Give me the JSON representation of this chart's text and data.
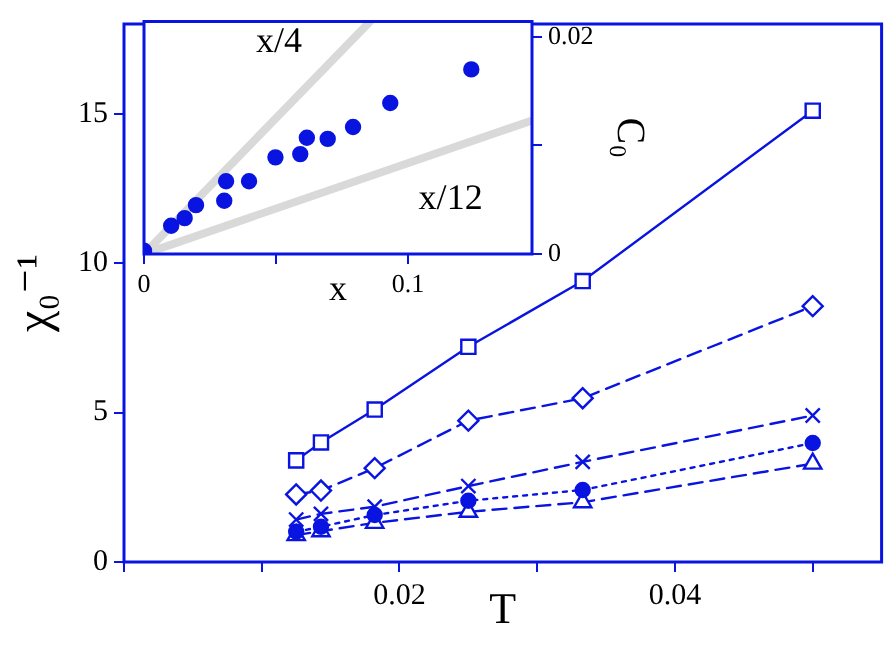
{
  "chart_data": [
    {
      "type": "line",
      "xlabel": "T",
      "ylabel": "χ₀⁻¹",
      "xlim": [
        0,
        0.055
      ],
      "ylim": [
        0,
        18
      ],
      "xticks": [
        {
          "value": 0,
          "label": null
        },
        {
          "value": 0.01,
          "label": null
        },
        0.02,
        {
          "value": 0.03,
          "label": null
        },
        0.04,
        {
          "value": 0.05,
          "label": null
        }
      ],
      "yticks": [
        0,
        5,
        10,
        15
      ],
      "grid": false,
      "legend": false,
      "x": [
        0.0125,
        0.0143,
        0.0182,
        0.025,
        0.0333,
        0.05
      ],
      "series": [
        {
          "color": "#0a14e0",
          "marker": "square",
          "line_style": "solid",
          "values": [
            3.4,
            4.0,
            5.1,
            7.2,
            9.4,
            15.1
          ]
        },
        {
          "color": "#0a14e0",
          "marker": "diamond",
          "line_style": "dashed",
          "values": [
            2.26,
            2.39,
            3.14,
            4.73,
            5.48,
            8.56
          ]
        },
        {
          "color": "#0a14e0",
          "marker": "cross",
          "line_style": "dashed",
          "values": [
            1.42,
            1.61,
            1.85,
            2.54,
            3.35,
            4.9
          ]
        },
        {
          "color": "#0a14e0",
          "marker": "circle",
          "line_style": "dotted",
          "values": [
            1.01,
            1.18,
            1.57,
            2.05,
            2.41,
            3.98
          ]
        },
        {
          "color": "#0a14e0",
          "marker": "triangle",
          "line_style": "dashed",
          "values": [
            0.9,
            1.03,
            1.31,
            1.68,
            2.0,
            3.29
          ]
        }
      ]
    },
    {
      "type": "scatter",
      "xlabel": "x",
      "ylabel": "C₀",
      "xlim": [
        0,
        0.147
      ],
      "ylim": [
        0,
        0.0214
      ],
      "xticks": [
        0,
        {
          "value": 0.05,
          "label": null
        },
        0.1
      ],
      "yticks": [
        0,
        {
          "value": 0.01,
          "label": null
        },
        0.02
      ],
      "grid": false,
      "legend": false,
      "series": [
        {
          "type": "line",
          "name": "x/4",
          "color": "#d9d9d9",
          "marker": "none",
          "line_style": "solid",
          "x": [
            0,
            0.0856
          ],
          "values": [
            0,
            0.0214
          ]
        },
        {
          "type": "line",
          "name": "x/12",
          "color": "#d9d9d9",
          "marker": "none",
          "line_style": "solid",
          "x": [
            0,
            0.147
          ],
          "values": [
            0,
            0.0123
          ]
        },
        {
          "color": "#0a14e0",
          "marker": "circle",
          "x": [
            0,
            0.0103,
            0.0197,
            0.0304,
            0.0398,
            0.0498,
            0.0592,
            0.0696,
            0.0792
          ],
          "values": [
            0.0003,
            0.0026,
            0.0045,
            0.0049,
            0.0067,
            0.0089,
            0.0092,
            0.0106,
            0.0117
          ]
        },
        {
          "color": "#0a14e0",
          "marker": "circle",
          "x": [
            0.0154,
            0.0311,
            0.0617,
            0.0933,
            0.124
          ],
          "values": [
            0.0033,
            0.0067,
            0.0107,
            0.0139,
            0.017
          ]
        }
      ]
    }
  ]
}
